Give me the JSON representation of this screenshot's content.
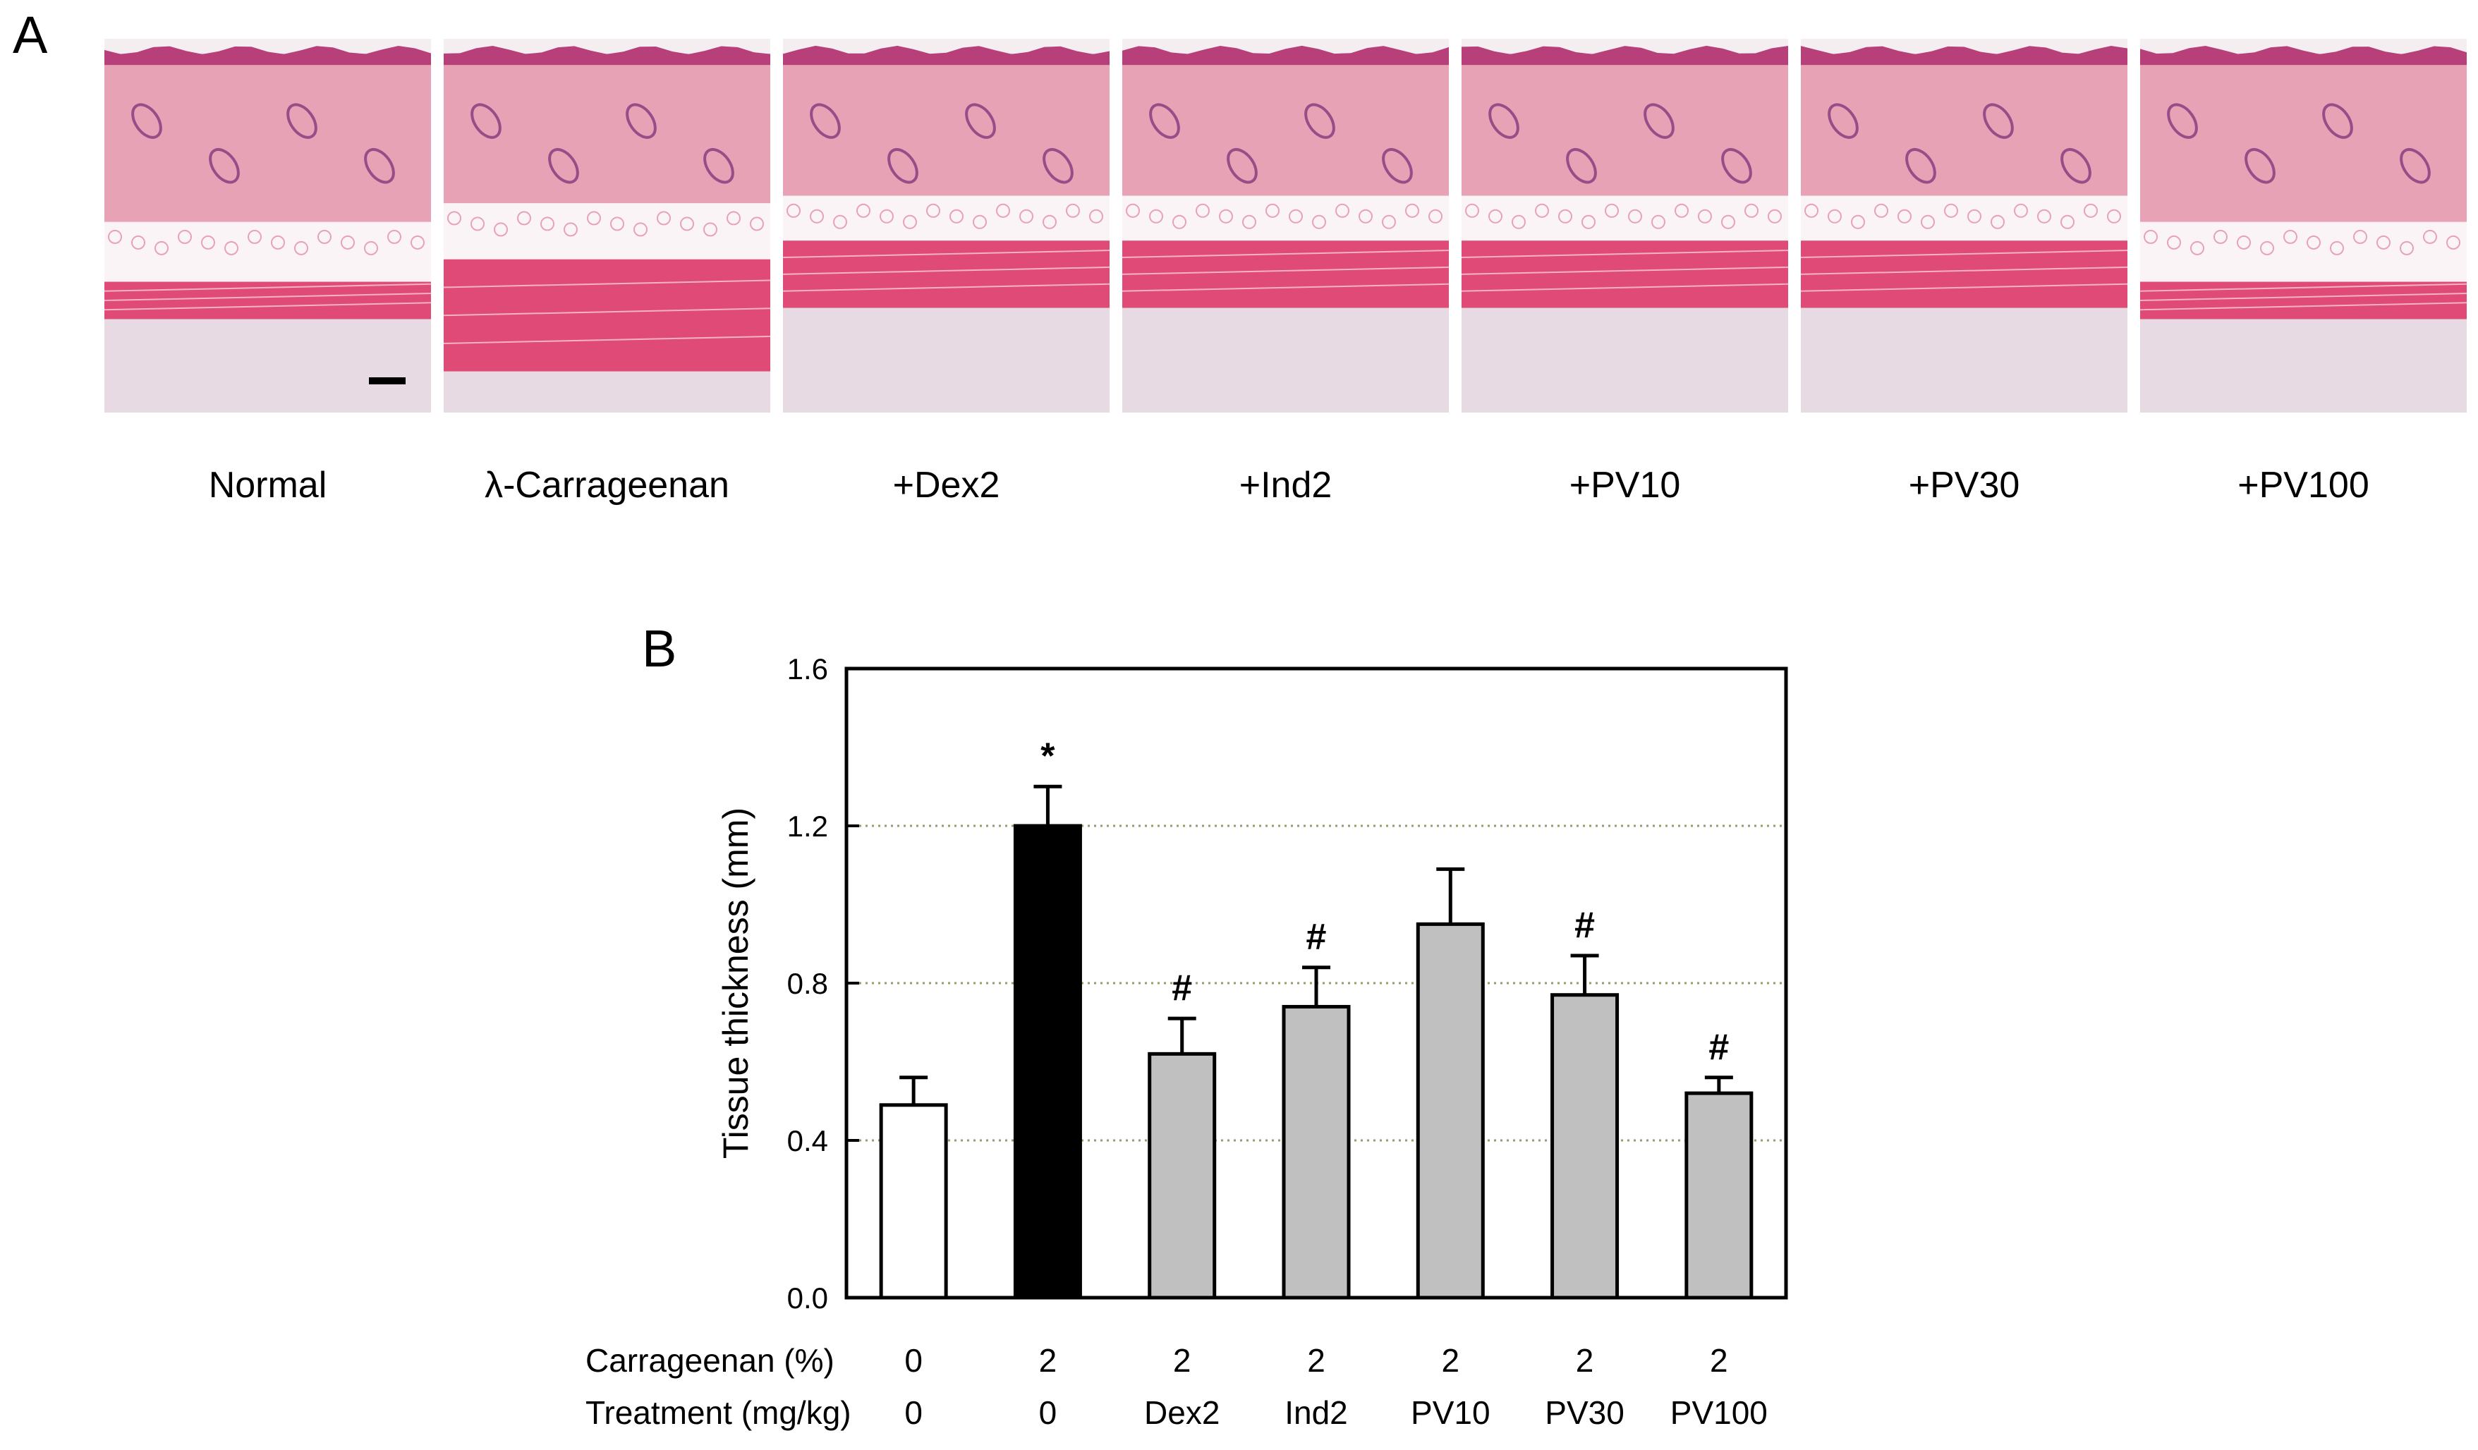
{
  "panel_a": {
    "label": "A",
    "panels": [
      {
        "caption": "Normal",
        "has_scale_bar": true,
        "variant": "normal"
      },
      {
        "caption": "λ-Carrageenan",
        "has_scale_bar": false,
        "variant": "edema"
      },
      {
        "caption": "+Dex2",
        "has_scale_bar": false,
        "variant": "muscle"
      },
      {
        "caption": "+Ind2",
        "has_scale_bar": false,
        "variant": "muscle"
      },
      {
        "caption": "+PV10",
        "has_scale_bar": false,
        "variant": "muscle"
      },
      {
        "caption": "+PV30",
        "has_scale_bar": false,
        "variant": "muscle"
      },
      {
        "caption": "+PV100",
        "has_scale_bar": false,
        "variant": "normal"
      }
    ],
    "colors": {
      "background": "#f4eef0",
      "dermis": "#e8a2b6",
      "epidermis": "#b8407a",
      "fat": "#faf4f6",
      "muscle": "#e04a76",
      "subcutis": "#e8dae2",
      "follicle": "#9a4c88"
    }
  },
  "chart_data": {
    "type": "bar",
    "panel_label": "B",
    "categories": [
      "0",
      "0",
      "Dex2",
      "Ind2",
      "PV10",
      "PV30",
      "PV100"
    ],
    "values": [
      0.49,
      1.2,
      0.62,
      0.74,
      0.95,
      0.77,
      0.52
    ],
    "errors": [
      0.07,
      0.1,
      0.09,
      0.1,
      0.14,
      0.1,
      0.04
    ],
    "bar_colors": [
      "#ffffff",
      "#000000",
      "#c0c0c0",
      "#c0c0c0",
      "#c0c0c0",
      "#c0c0c0",
      "#c0c0c0"
    ],
    "annotations": [
      "",
      "*",
      "#",
      "#",
      "",
      "#",
      "#"
    ],
    "row_labels": [
      {
        "label": "Carrageenan (%)",
        "values": [
          "0",
          "2",
          "2",
          "2",
          "2",
          "2",
          "2"
        ]
      },
      {
        "label": "Treatment (mg/kg)",
        "values": [
          "0",
          "0",
          "Dex2",
          "Ind2",
          "PV10",
          "PV30",
          "PV100"
        ]
      }
    ],
    "ylabel": "Tissue thickness (mm)",
    "xlabel": "",
    "title": "",
    "ylim": [
      0,
      1.6
    ],
    "yticks": [
      0.0,
      0.4,
      0.8,
      1.2,
      1.6
    ],
    "ytick_labels": [
      "0.0",
      "0.4",
      "0.8",
      "1.2",
      "1.6"
    ],
    "grid": "horizontal dotted at 0.4, 0.8, 1.2",
    "grid_color": "#9a9a6a"
  }
}
